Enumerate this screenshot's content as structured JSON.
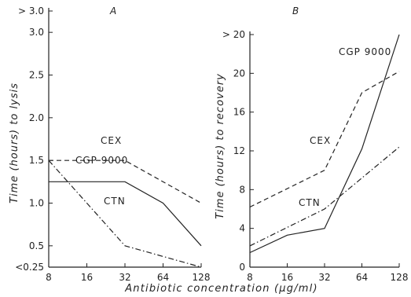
{
  "xlabel": "Antibiotic concentration (µg/ml)",
  "chart_data": [
    {
      "type": "line",
      "panel_label": "A",
      "ylabel": "Time (hours) to lysis",
      "x_scale": "log2",
      "x": [
        8,
        16,
        32,
        64,
        128
      ],
      "x_tick_labels": [
        "8",
        "16",
        "32",
        "64",
        "128"
      ],
      "y_tick_values": [
        0.25,
        0.5,
        1.0,
        1.5,
        2.0,
        2.5,
        3.0,
        3.25
      ],
      "y_tick_labels": [
        "<0.25",
        "0.5",
        "1.0",
        "1.5",
        "2.0",
        "2.5",
        "3.0",
        "> 3.0"
      ],
      "ylim": [
        0.25,
        3.25
      ],
      "series": [
        {
          "name": "CEX",
          "style": "dashed",
          "x": [
            8,
            32,
            128
          ],
          "values": [
            1.5,
            1.5,
            1.0
          ]
        },
        {
          "name": "CGP 9000",
          "style": "solid",
          "x": [
            8,
            32,
            64,
            128
          ],
          "values": [
            1.25,
            1.25,
            1.0,
            0.5
          ]
        },
        {
          "name": "CTN",
          "style": "dashdot",
          "x": [
            8,
            32,
            128
          ],
          "values": [
            1.5,
            0.5,
            0.25
          ]
        }
      ]
    },
    {
      "type": "line",
      "panel_label": "B",
      "ylabel": "Time (hours) to recovery",
      "x_scale": "log2",
      "x": [
        8,
        16,
        32,
        64,
        128
      ],
      "x_tick_labels": [
        "8",
        "16",
        "32",
        "64",
        "128"
      ],
      "y_tick_values": [
        0,
        4,
        8,
        12,
        16,
        20,
        24
      ],
      "y_tick_labels": [
        "0",
        "4",
        "8",
        "12",
        "16",
        "20",
        "> 20"
      ],
      "ylim": [
        0,
        24
      ],
      "series": [
        {
          "name": "CGP 9000",
          "style": "solid",
          "x": [
            8,
            16,
            32,
            64,
            128
          ],
          "values": [
            1.5,
            3.3,
            4.0,
            12.2,
            24
          ]
        },
        {
          "name": "CEX",
          "style": "dashed",
          "x": [
            8,
            32,
            64,
            128
          ],
          "values": [
            6.2,
            10.0,
            18.0,
            20.2
          ]
        },
        {
          "name": "CTN",
          "style": "dashdot",
          "x": [
            8,
            32,
            128
          ],
          "values": [
            2.2,
            6.0,
            12.4
          ]
        }
      ]
    }
  ]
}
